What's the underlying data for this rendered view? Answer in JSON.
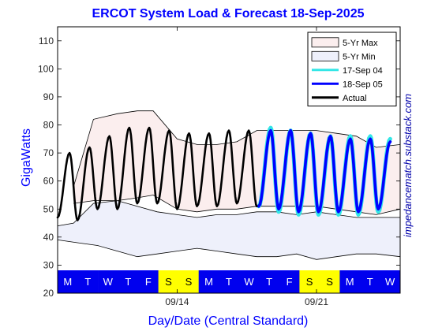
{
  "chart_data": {
    "type": "line",
    "title": "ERCOT System Load & Forecast 18-Sep-2025",
    "xlabel": "Day/Date (Central Standard)",
    "ylabel": "GigaWatts",
    "watermark": "impedancematch.substack.com",
    "ylim": [
      20,
      115
    ],
    "xlim": [
      0,
      17.2
    ],
    "yticks": [
      20,
      30,
      40,
      50,
      60,
      70,
      80,
      90,
      100,
      110
    ],
    "xticks": [
      {
        "x": 6,
        "label": "09/14"
      },
      {
        "x": 13,
        "label": "09/21"
      }
    ],
    "day_strip": {
      "days": [
        "M",
        "T",
        "W",
        "T",
        "F",
        "S",
        "S",
        "M",
        "T",
        "W",
        "T",
        "F",
        "S",
        "S",
        "M",
        "T",
        "W"
      ],
      "weekday_color": "#0000ee",
      "weekend_color": "#ffff00"
    },
    "legend": {
      "position": "top-right",
      "entries": [
        {
          "label": "5-Yr Max",
          "kind": "patch",
          "color": "#fbeeee"
        },
        {
          "label": "5-Yr Min",
          "kind": "patch",
          "color": "#eef0fb"
        },
        {
          "label": "17-Sep 04",
          "kind": "line",
          "color": "#33e6e6"
        },
        {
          "label": "18-Sep 05",
          "kind": "line",
          "color": "#0000ff"
        },
        {
          "label": "Actual",
          "kind": "line",
          "color": "#000000"
        }
      ]
    },
    "series": [
      {
        "name": "5-Yr Max",
        "upper": [
          [
            0.8,
            58
          ],
          [
            1.8,
            82
          ],
          [
            3,
            84
          ],
          [
            4,
            85
          ],
          [
            4.8,
            85
          ],
          [
            6,
            75
          ],
          [
            7,
            73
          ],
          [
            8,
            73
          ],
          [
            9,
            74
          ],
          [
            10,
            78
          ],
          [
            11,
            78
          ],
          [
            12,
            78
          ],
          [
            13,
            78
          ],
          [
            14,
            77
          ],
          [
            15,
            76
          ],
          [
            16,
            72
          ],
          [
            17.2,
            73
          ]
        ],
        "lower": [
          [
            0.8,
            52
          ],
          [
            1.8,
            53
          ],
          [
            3,
            53
          ],
          [
            4,
            54
          ],
          [
            4.8,
            55
          ],
          [
            6,
            50
          ],
          [
            7,
            49
          ],
          [
            8,
            50
          ],
          [
            9,
            50
          ],
          [
            10,
            51
          ],
          [
            11,
            51
          ],
          [
            12,
            51
          ],
          [
            13,
            51
          ],
          [
            14,
            50
          ],
          [
            15,
            49
          ],
          [
            16,
            48
          ],
          [
            17.2,
            50
          ]
        ]
      },
      {
        "name": "5-Yr Min",
        "upper": [
          [
            0,
            44
          ],
          [
            0.8,
            45
          ],
          [
            1.8,
            52
          ],
          [
            3,
            53
          ],
          [
            4,
            51
          ],
          [
            5,
            49
          ],
          [
            6,
            48
          ],
          [
            7,
            47
          ],
          [
            8,
            48
          ],
          [
            9,
            48
          ],
          [
            10,
            49
          ],
          [
            11,
            49
          ],
          [
            12,
            48
          ],
          [
            13,
            49
          ],
          [
            14,
            48
          ],
          [
            15,
            47
          ],
          [
            16,
            47
          ],
          [
            17.2,
            47
          ]
        ],
        "lower": [
          [
            0,
            39
          ],
          [
            1,
            38
          ],
          [
            2,
            37
          ],
          [
            3,
            35
          ],
          [
            4,
            33
          ],
          [
            5,
            34
          ],
          [
            6,
            35
          ],
          [
            7,
            36
          ],
          [
            8,
            35
          ],
          [
            9,
            34
          ],
          [
            10,
            33
          ],
          [
            11,
            33
          ],
          [
            12,
            34
          ],
          [
            13,
            32
          ],
          [
            14,
            33
          ],
          [
            15,
            34
          ],
          [
            16,
            34
          ],
          [
            17.2,
            33
          ]
        ]
      },
      {
        "name": "17-Sep 04",
        "color": "#33e6e6",
        "start": 10.1,
        "end": 17.2,
        "peaks": [
          79,
          78,
          77,
          76,
          76,
          76,
          75,
          75
        ],
        "troughs": [
          51,
          49,
          48,
          48,
          48,
          48,
          49
        ]
      },
      {
        "name": "18-Sep 05",
        "color": "#0000ff",
        "start": 10.1,
        "end": 17.2,
        "peaks": [
          78,
          78,
          77,
          76,
          75,
          75,
          74,
          73
        ],
        "troughs": [
          51,
          50,
          49,
          49,
          49,
          49,
          50
        ]
      },
      {
        "name": "Actual",
        "color": "#000000",
        "start": 0,
        "end": 10.1,
        "peaks": [
          70,
          72,
          76,
          79,
          79,
          78,
          77,
          77,
          78,
          78
        ],
        "troughs": [
          47,
          46,
          50,
          50,
          52,
          52,
          50,
          51,
          51,
          52,
          51
        ]
      }
    ]
  }
}
